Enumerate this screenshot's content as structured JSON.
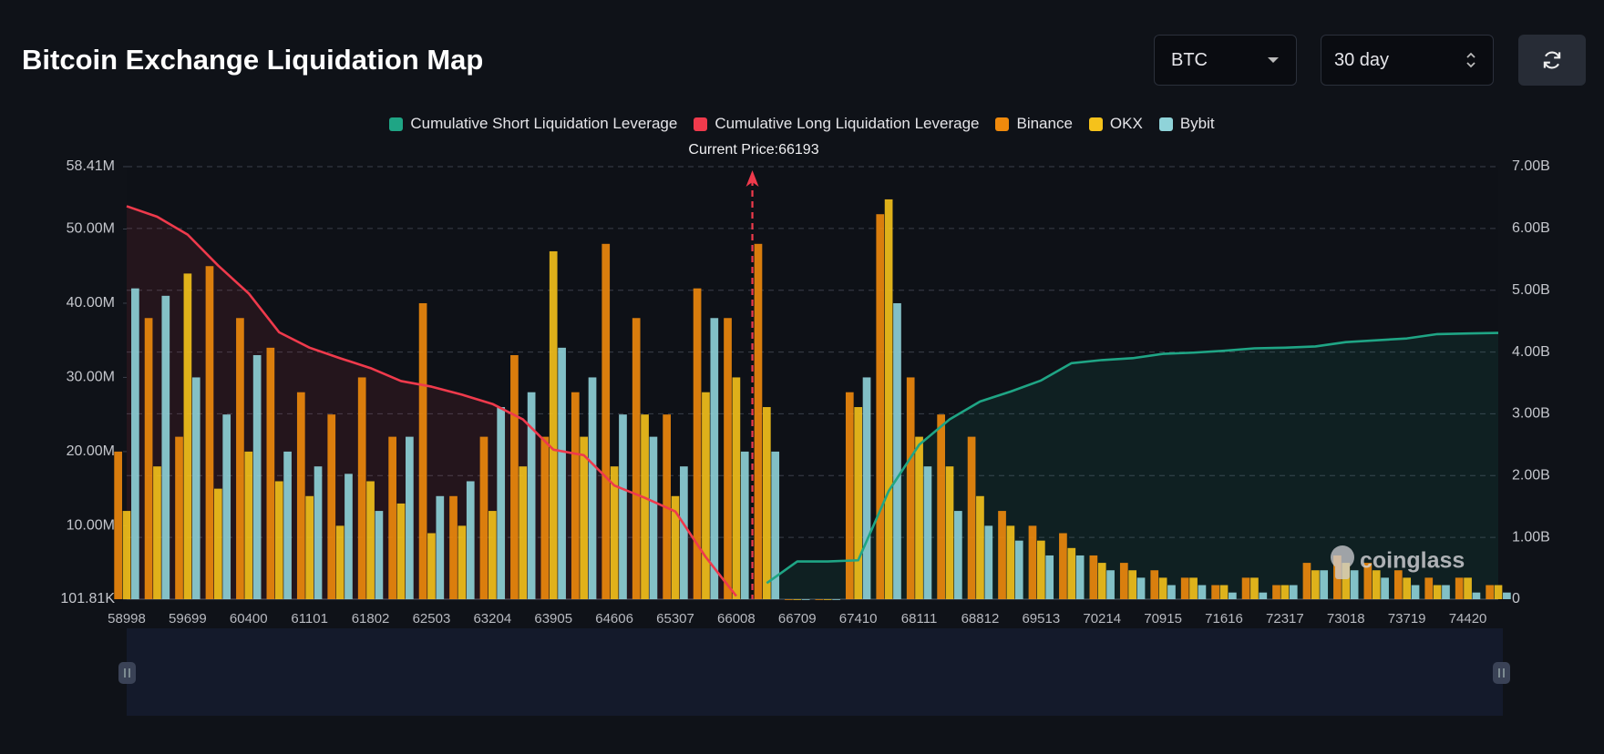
{
  "controls": {
    "coin": "BTC",
    "period": "30 day"
  },
  "chart_data": {
    "type": "bar",
    "title": "Bitcoin Exchange Liquidation Map",
    "annotation": {
      "text": "Current Price:66193",
      "price": 66193
    },
    "watermark": "coinglass",
    "categories": [
      "58998",
      null,
      "59699",
      null,
      "60400",
      null,
      "61101",
      null,
      "61802",
      null,
      "62503",
      null,
      "63204",
      null,
      "63905",
      null,
      "64606",
      null,
      "65307",
      null,
      "66008",
      null,
      "66709",
      null,
      "67410",
      null,
      "68111",
      null,
      "68812",
      null,
      "69513",
      null,
      "70214",
      null,
      "70915",
      null,
      "71616",
      null,
      "72317",
      null,
      "73018",
      null,
      "73719",
      null,
      "74420",
      null
    ],
    "series": [
      {
        "name": "Cumulative Short Liquidation Leverage",
        "type": "line",
        "axis": "y2",
        "color": "#1fa585",
        "values": [
          null,
          null,
          null,
          null,
          null,
          null,
          null,
          null,
          null,
          null,
          null,
          null,
          null,
          null,
          null,
          null,
          null,
          null,
          null,
          null,
          null,
          0.26,
          0.61,
          0.61,
          0.63,
          1.75,
          2.5,
          2.91,
          3.2,
          3.36,
          3.54,
          3.82,
          3.87,
          3.9,
          3.97,
          3.99,
          4.02,
          4.06,
          4.07,
          4.09,
          4.16,
          4.19,
          4.22,
          4.29,
          4.3,
          4.31
        ]
      },
      {
        "name": "Cumulative Long Liquidation Leverage",
        "type": "line",
        "axis": "y2",
        "color": "#ef3a4c",
        "values": [
          6.36,
          6.19,
          5.9,
          5.4,
          4.95,
          4.32,
          4.07,
          3.9,
          3.74,
          3.53,
          3.44,
          3.31,
          3.16,
          2.91,
          2.42,
          2.33,
          1.84,
          1.64,
          1.42,
          0.68,
          0.05,
          null,
          null,
          null,
          null,
          null,
          null,
          null,
          null,
          null,
          null,
          null,
          null,
          null,
          null,
          null,
          null,
          null,
          null,
          null,
          null,
          null,
          null,
          null,
          null,
          null
        ]
      },
      {
        "name": "Binance",
        "type": "bar",
        "color": "#f08a0c",
        "values": [
          20,
          38,
          22,
          45,
          38,
          34,
          28,
          25,
          30,
          22,
          40,
          14,
          22,
          33,
          22,
          28,
          48,
          38,
          25,
          42,
          38,
          48,
          0,
          0,
          28,
          52,
          30,
          25,
          22,
          12,
          10,
          9,
          6,
          5,
          4,
          3,
          2,
          3,
          2,
          5,
          6,
          5,
          4,
          3,
          3,
          2
        ]
      },
      {
        "name": "OKX",
        "type": "bar",
        "color": "#f5c21b",
        "values": [
          12,
          18,
          44,
          15,
          20,
          16,
          14,
          10,
          16,
          13,
          9,
          10,
          12,
          18,
          47,
          22,
          18,
          25,
          14,
          28,
          30,
          26,
          0,
          0,
          26,
          54,
          22,
          18,
          14,
          10,
          8,
          7,
          5,
          4,
          3,
          3,
          2,
          3,
          2,
          4,
          5,
          4,
          3,
          2,
          3,
          2
        ]
      },
      {
        "name": "Bybit",
        "type": "bar",
        "color": "#8fd3d9",
        "values": [
          42,
          41,
          30,
          25,
          33,
          20,
          18,
          17,
          12,
          22,
          14,
          16,
          26,
          28,
          34,
          30,
          25,
          22,
          18,
          38,
          20,
          20,
          0,
          0,
          30,
          40,
          18,
          12,
          10,
          8,
          6,
          6,
          4,
          3,
          2,
          2,
          1,
          1,
          2,
          4,
          4,
          3,
          2,
          2,
          1,
          1
        ]
      }
    ],
    "ylim": [
      0.10181,
      58.41
    ],
    "yticks": [
      {
        "value": 0.10181,
        "label": "101.81K"
      },
      {
        "value": 10,
        "label": "10.00M"
      },
      {
        "value": 20,
        "label": "20.00M"
      },
      {
        "value": 30,
        "label": "30.00M"
      },
      {
        "value": 40,
        "label": "40.00M"
      },
      {
        "value": 50,
        "label": "50.00M"
      },
      {
        "value": 58.41,
        "label": "58.41M"
      }
    ],
    "y2lim": [
      0,
      7
    ],
    "y2ticks": [
      0,
      {
        "value": 1,
        "label": "1.00B"
      },
      {
        "value": 2,
        "label": "2.00B"
      },
      {
        "value": 3,
        "label": "3.00B"
      },
      {
        "value": 4,
        "label": "4.00B"
      },
      {
        "value": 5,
        "label": "5.00B"
      },
      {
        "value": 6,
        "label": "6.00B"
      },
      {
        "value": 7,
        "label": "7.00B"
      }
    ],
    "grid": true
  }
}
